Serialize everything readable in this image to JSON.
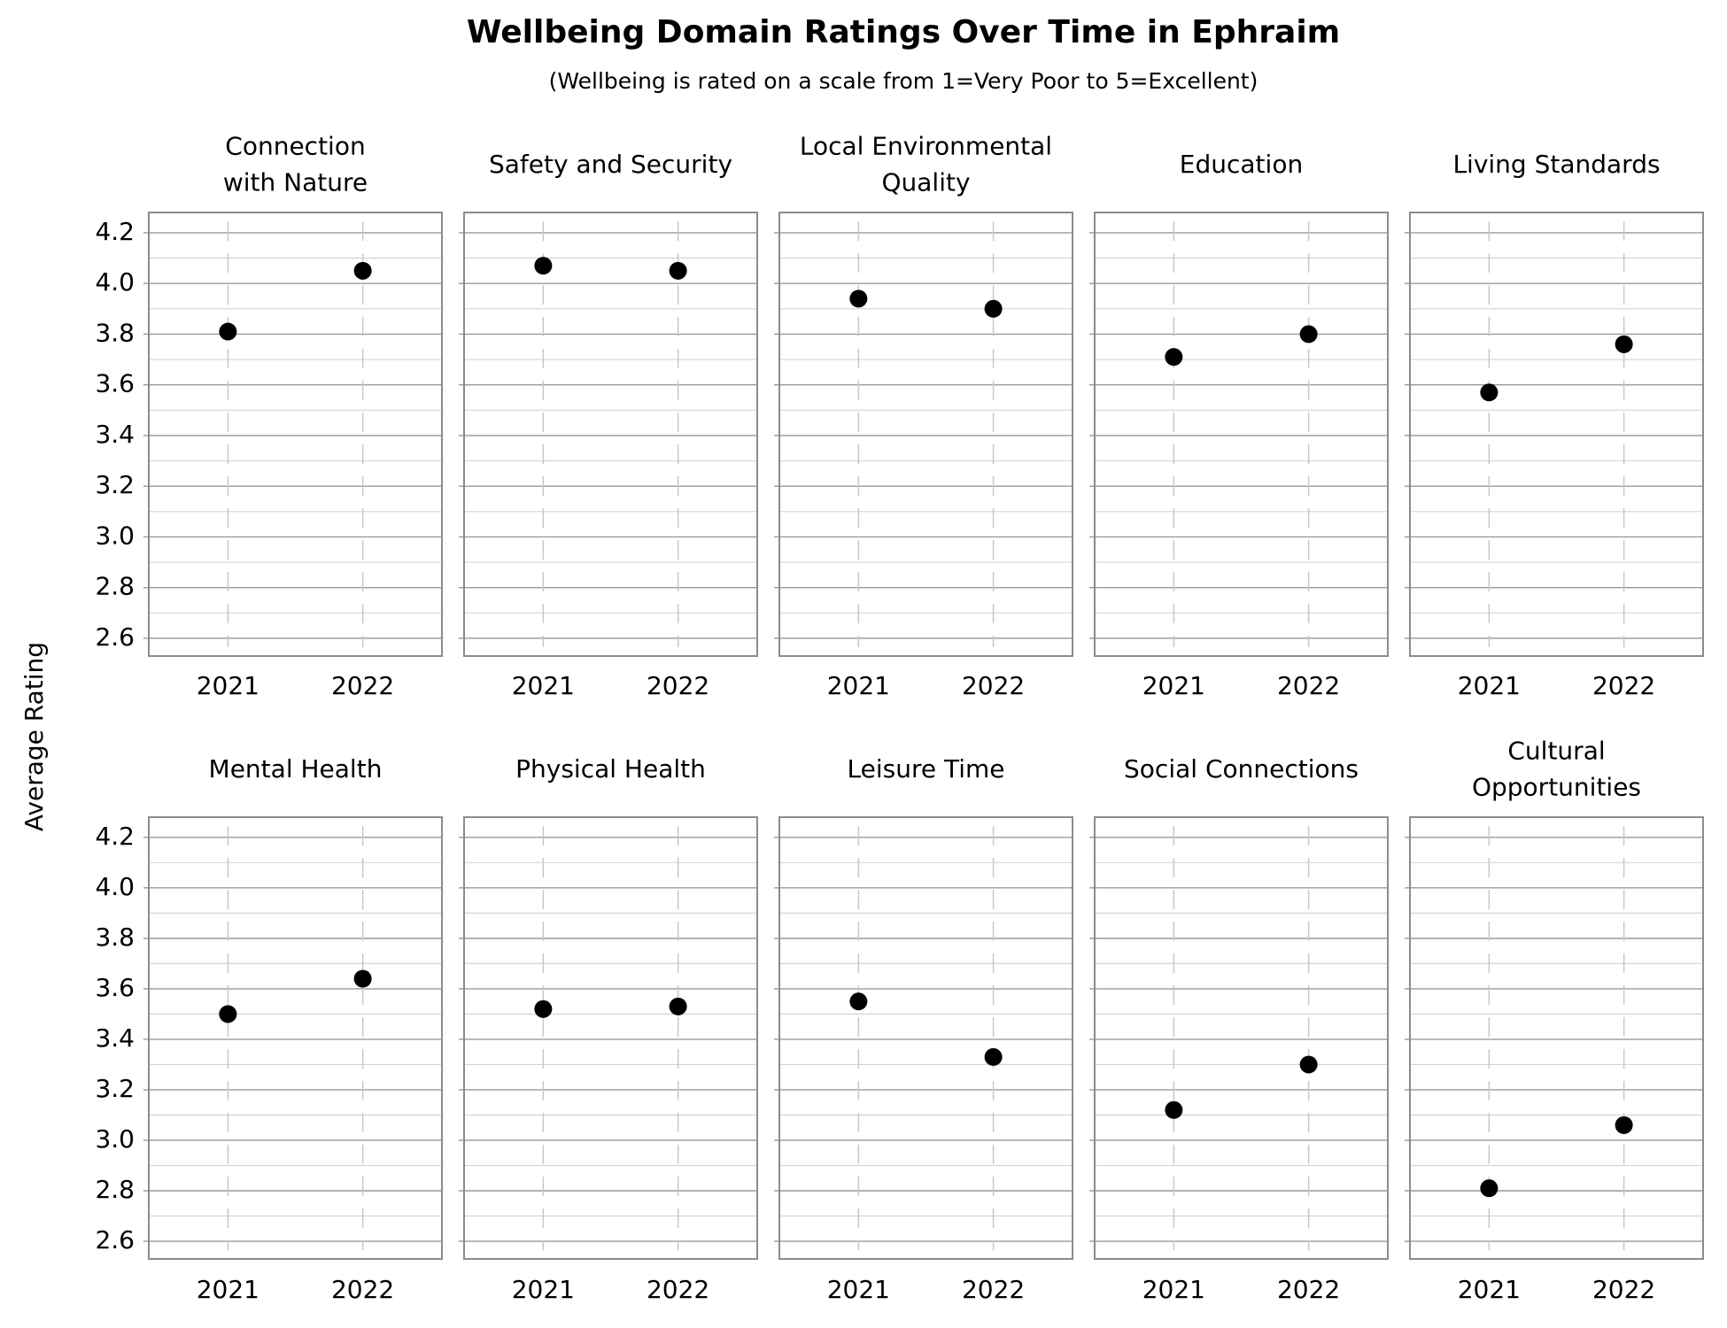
{
  "title": "Wellbeing Domain Ratings Over Time in Ephraim",
  "subtitle": "(Wellbeing is rated on a scale from 1=Very Poor to 5=Excellent)",
  "y_label": "Average Rating",
  "chart_data": [
    {
      "type": "dot",
      "title": [
        "Connection",
        "with Nature"
      ],
      "categories": [
        "2021",
        "2022"
      ],
      "values": [
        3.81,
        4.05
      ],
      "color": "#000000",
      "ylim": [
        2.53,
        4.28
      ],
      "yticks": [
        2.6,
        2.8,
        {
          "value": 3,
          "label": "3.0"
        },
        3.2,
        3.4,
        3.6,
        3.8,
        {
          "value": 4,
          "label": "4.0"
        },
        4.2
      ],
      "minor_yticks": [
        2.7,
        2.9,
        3.1,
        3.3,
        3.5,
        3.7,
        3.9,
        4.1
      ],
      "grid": true
    },
    {
      "type": "dot",
      "title": [
        "Safety and Security"
      ],
      "categories": [
        "2021",
        "2022"
      ],
      "values": [
        4.07,
        4.05
      ],
      "color": "#000000",
      "ylim": [
        2.53,
        4.28
      ],
      "yticks": [
        2.6,
        2.8,
        {
          "value": 3,
          "label": "3.0"
        },
        3.2,
        3.4,
        3.6,
        3.8,
        {
          "value": 4,
          "label": "4.0"
        },
        4.2
      ],
      "minor_yticks": [
        2.7,
        2.9,
        3.1,
        3.3,
        3.5,
        3.7,
        3.9,
        4.1
      ],
      "grid": true
    },
    {
      "type": "dot",
      "title": [
        "Local Environmental",
        "Quality"
      ],
      "categories": [
        "2021",
        "2022"
      ],
      "values": [
        3.94,
        3.9
      ],
      "color": "#000000",
      "ylim": [
        2.53,
        4.28
      ],
      "yticks": [
        2.6,
        2.8,
        {
          "value": 3,
          "label": "3.0"
        },
        3.2,
        3.4,
        3.6,
        3.8,
        {
          "value": 4,
          "label": "4.0"
        },
        4.2
      ],
      "minor_yticks": [
        2.7,
        2.9,
        3.1,
        3.3,
        3.5,
        3.7,
        3.9,
        4.1
      ],
      "grid": true
    },
    {
      "type": "dot",
      "title": [
        "Education"
      ],
      "categories": [
        "2021",
        "2022"
      ],
      "values": [
        3.71,
        3.8
      ],
      "color": "#000000",
      "ylim": [
        2.53,
        4.28
      ],
      "yticks": [
        2.6,
        2.8,
        {
          "value": 3,
          "label": "3.0"
        },
        3.2,
        3.4,
        3.6,
        3.8,
        {
          "value": 4,
          "label": "4.0"
        },
        4.2
      ],
      "minor_yticks": [
        2.7,
        2.9,
        3.1,
        3.3,
        3.5,
        3.7,
        3.9,
        4.1
      ],
      "grid": true
    },
    {
      "type": "dot",
      "title": [
        "Living Standards"
      ],
      "categories": [
        "2021",
        "2022"
      ],
      "values": [
        3.57,
        3.76
      ],
      "color": "#000000",
      "ylim": [
        2.53,
        4.28
      ],
      "yticks": [
        2.6,
        2.8,
        {
          "value": 3,
          "label": "3.0"
        },
        3.2,
        3.4,
        3.6,
        3.8,
        {
          "value": 4,
          "label": "4.0"
        },
        4.2
      ],
      "minor_yticks": [
        2.7,
        2.9,
        3.1,
        3.3,
        3.5,
        3.7,
        3.9,
        4.1
      ],
      "grid": true
    },
    {
      "type": "dot",
      "title": [
        "Mental Health"
      ],
      "categories": [
        "2021",
        "2022"
      ],
      "values": [
        3.5,
        3.64
      ],
      "color": "#000000",
      "ylim": [
        2.53,
        4.28
      ],
      "yticks": [
        2.6,
        2.8,
        {
          "value": 3,
          "label": "3.0"
        },
        3.2,
        3.4,
        3.6,
        3.8,
        {
          "value": 4,
          "label": "4.0"
        },
        4.2
      ],
      "minor_yticks": [
        2.7,
        2.9,
        3.1,
        3.3,
        3.5,
        3.7,
        3.9,
        4.1
      ],
      "grid": true
    },
    {
      "type": "dot",
      "title": [
        "Physical Health"
      ],
      "categories": [
        "2021",
        "2022"
      ],
      "values": [
        3.52,
        3.53
      ],
      "color": "#000000",
      "ylim": [
        2.53,
        4.28
      ],
      "yticks": [
        2.6,
        2.8,
        {
          "value": 3,
          "label": "3.0"
        },
        3.2,
        3.4,
        3.6,
        3.8,
        {
          "value": 4,
          "label": "4.0"
        },
        4.2
      ],
      "minor_yticks": [
        2.7,
        2.9,
        3.1,
        3.3,
        3.5,
        3.7,
        3.9,
        4.1
      ],
      "grid": true
    },
    {
      "type": "dot",
      "title": [
        "Leisure Time"
      ],
      "categories": [
        "2021",
        "2022"
      ],
      "values": [
        3.55,
        3.33
      ],
      "color": "#000000",
      "ylim": [
        2.53,
        4.28
      ],
      "yticks": [
        2.6,
        2.8,
        {
          "value": 3,
          "label": "3.0"
        },
        3.2,
        3.4,
        3.6,
        3.8,
        {
          "value": 4,
          "label": "4.0"
        },
        4.2
      ],
      "minor_yticks": [
        2.7,
        2.9,
        3.1,
        3.3,
        3.5,
        3.7,
        3.9,
        4.1
      ],
      "grid": true
    },
    {
      "type": "dot",
      "title": [
        "Social Connections"
      ],
      "categories": [
        "2021",
        "2022"
      ],
      "values": [
        3.12,
        3.3
      ],
      "color": "#000000",
      "ylim": [
        2.53,
        4.28
      ],
      "yticks": [
        2.6,
        2.8,
        {
          "value": 3,
          "label": "3.0"
        },
        3.2,
        3.4,
        3.6,
        3.8,
        {
          "value": 4,
          "label": "4.0"
        },
        4.2
      ],
      "minor_yticks": [
        2.7,
        2.9,
        3.1,
        3.3,
        3.5,
        3.7,
        3.9,
        4.1
      ],
      "grid": true
    },
    {
      "type": "dot",
      "title": [
        "Cultural",
        "Opportunities"
      ],
      "categories": [
        "2021",
        "2022"
      ],
      "values": [
        2.81,
        3.06
      ],
      "color": "#000000",
      "ylim": [
        2.53,
        4.28
      ],
      "yticks": [
        2.6,
        2.8,
        {
          "value": 3,
          "label": "3.0"
        },
        3.2,
        3.4,
        3.6,
        3.8,
        {
          "value": 4,
          "label": "4.0"
        },
        4.2
      ],
      "minor_yticks": [
        2.7,
        2.9,
        3.1,
        3.3,
        3.5,
        3.7,
        3.9,
        4.1
      ],
      "grid": true
    }
  ]
}
